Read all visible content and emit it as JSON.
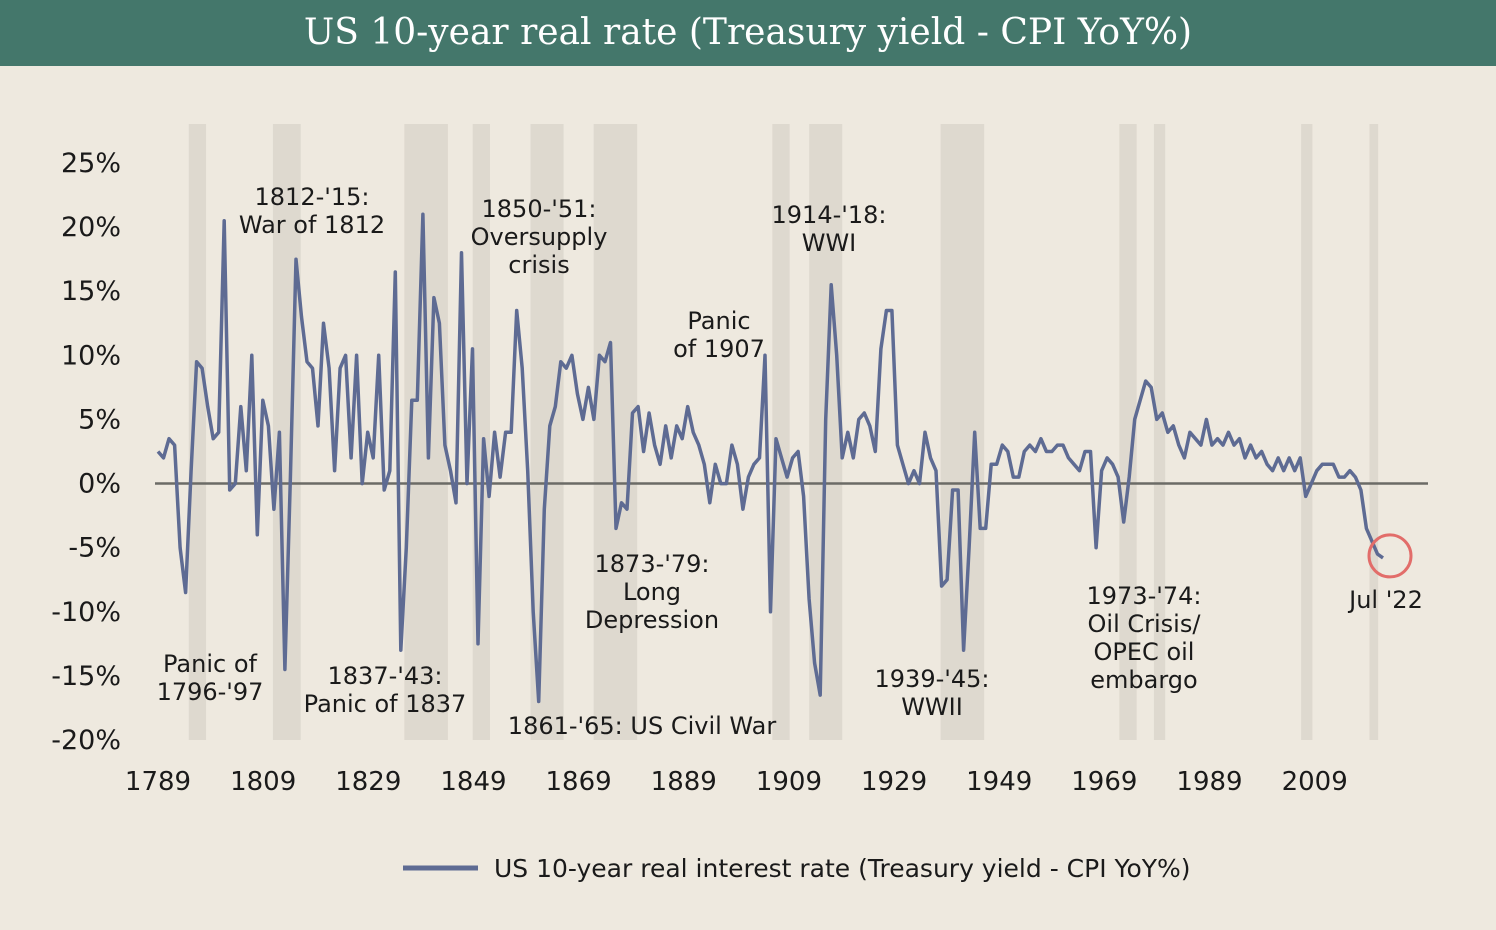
{
  "header": {
    "title": "US 10-year real rate (Treasury yield - CPI YoY%)"
  },
  "chart_data": {
    "type": "line",
    "title": "US 10-year real rate (Treasury yield - CPI YoY%)",
    "xlabel": "",
    "ylabel": "",
    "xlim": [
      1789,
      2022
    ],
    "ylim": [
      -20,
      25
    ],
    "y_tick_values": [
      25,
      20,
      15,
      10,
      5,
      0,
      -5,
      -10,
      -15,
      -20
    ],
    "y_tick_labels": [
      "25%",
      "20%",
      "15%",
      "10%",
      "5%",
      "0%",
      "-5%",
      "-10%",
      "-15%",
      "-20%"
    ],
    "x_ticks": [
      1789,
      1809,
      1829,
      1849,
      1869,
      1889,
      1909,
      1929,
      1949,
      1969,
      1989,
      2009
    ],
    "legend": {
      "position": "bottom-center",
      "label": "US 10-year real interest rate (Treasury yield - CPI YoY%)"
    },
    "colors": {
      "line": "#5e6b93",
      "zero_line": "#6b6b66",
      "highlight_circle": "#e26d6a",
      "shade": "#d8d3ca"
    },
    "shaded_periods": [
      {
        "start": 1796,
        "end": 1797,
        "label_lines": [
          "Panic of",
          "1796-'97"
        ]
      },
      {
        "start": 1812,
        "end": 1815,
        "label_lines": [
          "1812-'15:",
          "War of 1812"
        ]
      },
      {
        "start": 1837,
        "end": 1843,
        "label_lines": [
          "1837-'43:",
          "Panic of 1837"
        ]
      },
      {
        "start": 1850,
        "end": 1851,
        "label_lines": [
          "1850-'51:",
          "Oversupply",
          "crisis"
        ]
      },
      {
        "start": 1861,
        "end": 1865,
        "label_lines": [
          "1861-'65: US Civil War"
        ]
      },
      {
        "start": 1873,
        "end": 1879,
        "label_lines": [
          "1873-'79:",
          "Long",
          "Depression"
        ]
      },
      {
        "start": 1907,
        "end": 1908,
        "label_lines": [
          "Panic",
          "of 1907"
        ]
      },
      {
        "start": 1914,
        "end": 1918,
        "label_lines": [
          "1914-'18:",
          "WWI"
        ]
      },
      {
        "start": 1939,
        "end": 1945,
        "label_lines": [
          "1939-'45:",
          "WWII"
        ]
      },
      {
        "start": 1973,
        "end": 1974,
        "label_lines": [
          "1973-'74:",
          "Oil Crisis/",
          "OPEC oil",
          "embargo"
        ]
      }
    ],
    "extra_bands": [
      {
        "start": 1979,
        "end": 1980
      },
      {
        "start": 2007,
        "end": 2008
      },
      {
        "start": 2020,
        "end": 2020.5
      }
    ],
    "highlight": {
      "x": 2022,
      "y": -5.3,
      "label": "Jul '22"
    },
    "series": [
      {
        "name": "US 10-year real interest rate (Treasury yield - CPI YoY%)",
        "points": [
          [
            1790,
            2.5
          ],
          [
            1791,
            2.0
          ],
          [
            1792,
            3.5
          ],
          [
            1793,
            3.0
          ],
          [
            1794,
            -5.0
          ],
          [
            1795,
            -8.5
          ],
          [
            1796,
            1.0
          ],
          [
            1797,
            9.5
          ],
          [
            1798,
            9.0
          ],
          [
            1799,
            6.0
          ],
          [
            1800,
            3.5
          ],
          [
            1801,
            4.0
          ],
          [
            1802,
            20.5
          ],
          [
            1803,
            -0.5
          ],
          [
            1804,
            0.0
          ],
          [
            1805,
            6.0
          ],
          [
            1806,
            1.0
          ],
          [
            1807,
            10.0
          ],
          [
            1808,
            -4.0
          ],
          [
            1809,
            6.5
          ],
          [
            1810,
            4.5
          ],
          [
            1811,
            -2.0
          ],
          [
            1812,
            4.0
          ],
          [
            1813,
            -14.5
          ],
          [
            1814,
            0.5
          ],
          [
            1815,
            17.5
          ],
          [
            1816,
            13.0
          ],
          [
            1817,
            9.5
          ],
          [
            1818,
            9.0
          ],
          [
            1819,
            4.5
          ],
          [
            1820,
            12.5
          ],
          [
            1821,
            9.0
          ],
          [
            1822,
            1.0
          ],
          [
            1823,
            9.0
          ],
          [
            1824,
            10.0
          ],
          [
            1825,
            2.0
          ],
          [
            1826,
            10.0
          ],
          [
            1827,
            0.0
          ],
          [
            1828,
            4.0
          ],
          [
            1829,
            2.0
          ],
          [
            1830,
            10.0
          ],
          [
            1831,
            -0.5
          ],
          [
            1832,
            1.0
          ],
          [
            1833,
            16.5
          ],
          [
            1834,
            -13.0
          ],
          [
            1835,
            -5.0
          ],
          [
            1836,
            6.5
          ],
          [
            1837,
            6.5
          ],
          [
            1838,
            21.0
          ],
          [
            1839,
            2.0
          ],
          [
            1840,
            14.5
          ],
          [
            1841,
            12.5
          ],
          [
            1842,
            3.0
          ],
          [
            1843,
            1.0
          ],
          [
            1844,
            -1.5
          ],
          [
            1845,
            18.0
          ],
          [
            1846,
            0.0
          ],
          [
            1847,
            10.5
          ],
          [
            1848,
            -12.5
          ],
          [
            1849,
            3.5
          ],
          [
            1850,
            -1.0
          ],
          [
            1851,
            4.0
          ],
          [
            1852,
            0.5
          ],
          [
            1853,
            4.0
          ],
          [
            1854,
            4.0
          ],
          [
            1855,
            13.5
          ],
          [
            1856,
            9.0
          ],
          [
            1857,
            1.0
          ],
          [
            1858,
            -10.0
          ],
          [
            1859,
            -17.0
          ],
          [
            1860,
            -2.0
          ],
          [
            1861,
            4.5
          ],
          [
            1862,
            6.0
          ],
          [
            1863,
            9.5
          ],
          [
            1864,
            9.0
          ],
          [
            1865,
            10.0
          ],
          [
            1866,
            7.0
          ],
          [
            1867,
            5.0
          ],
          [
            1868,
            7.5
          ],
          [
            1869,
            5.0
          ],
          [
            1870,
            10.0
          ],
          [
            1871,
            9.5
          ],
          [
            1872,
            11.0
          ],
          [
            1873,
            -3.5
          ],
          [
            1874,
            -1.5
          ],
          [
            1875,
            -2.0
          ],
          [
            1876,
            5.5
          ],
          [
            1877,
            6.0
          ],
          [
            1878,
            2.5
          ],
          [
            1879,
            5.5
          ],
          [
            1880,
            3.0
          ],
          [
            1881,
            1.5
          ],
          [
            1882,
            4.5
          ],
          [
            1883,
            2.0
          ],
          [
            1884,
            4.5
          ],
          [
            1885,
            3.5
          ],
          [
            1886,
            6.0
          ],
          [
            1887,
            4.0
          ],
          [
            1888,
            3.0
          ],
          [
            1889,
            1.5
          ],
          [
            1890,
            -1.5
          ],
          [
            1891,
            1.5
          ],
          [
            1892,
            0.0
          ],
          [
            1893,
            0.0
          ],
          [
            1894,
            3.0
          ],
          [
            1895,
            1.5
          ],
          [
            1896,
            -2.0
          ],
          [
            1897,
            0.5
          ],
          [
            1898,
            1.5
          ],
          [
            1899,
            2.0
          ],
          [
            1900,
            10.0
          ],
          [
            1901,
            -10.0
          ],
          [
            1902,
            3.5
          ],
          [
            1903,
            2.0
          ],
          [
            1904,
            0.5
          ],
          [
            1905,
            2.0
          ],
          [
            1906,
            2.5
          ],
          [
            1907,
            -1.0
          ],
          [
            1908,
            -9.0
          ],
          [
            1909,
            -14.0
          ],
          [
            1910,
            -16.5
          ],
          [
            1911,
            5.0
          ],
          [
            1912,
            15.5
          ],
          [
            1913,
            10.0
          ],
          [
            1914,
            2.0
          ],
          [
            1915,
            4.0
          ],
          [
            1916,
            2.0
          ],
          [
            1917,
            5.0
          ],
          [
            1918,
            5.5
          ],
          [
            1919,
            4.5
          ],
          [
            1920,
            2.5
          ],
          [
            1921,
            10.5
          ],
          [
            1922,
            13.5
          ],
          [
            1923,
            13.5
          ],
          [
            1924,
            3.0
          ],
          [
            1925,
            1.5
          ],
          [
            1926,
            0.0
          ],
          [
            1927,
            1.0
          ],
          [
            1928,
            0.0
          ],
          [
            1929,
            4.0
          ],
          [
            1930,
            2.0
          ],
          [
            1931,
            1.0
          ],
          [
            1932,
            -8.0
          ],
          [
            1933,
            -7.5
          ],
          [
            1934,
            -0.5
          ],
          [
            1935,
            -0.5
          ],
          [
            1936,
            -13.0
          ],
          [
            1937,
            -5.0
          ],
          [
            1938,
            4.0
          ],
          [
            1939,
            -3.5
          ],
          [
            1940,
            -3.5
          ],
          [
            1941,
            1.5
          ],
          [
            1942,
            1.5
          ],
          [
            1943,
            3.0
          ],
          [
            1944,
            2.5
          ],
          [
            1945,
            0.5
          ],
          [
            1946,
            0.5
          ],
          [
            1947,
            2.5
          ],
          [
            1948,
            3.0
          ],
          [
            1949,
            2.5
          ],
          [
            1950,
            3.5
          ],
          [
            1951,
            2.5
          ],
          [
            1952,
            2.5
          ],
          [
            1953,
            3.0
          ],
          [
            1954,
            3.0
          ],
          [
            1955,
            2.0
          ],
          [
            1956,
            1.5
          ],
          [
            1957,
            1.0
          ],
          [
            1958,
            2.5
          ],
          [
            1959,
            2.5
          ],
          [
            1960,
            -5.0
          ],
          [
            1961,
            1.0
          ],
          [
            1962,
            2.0
          ],
          [
            1963,
            1.5
          ],
          [
            1964,
            0.5
          ],
          [
            1965,
            -3.0
          ],
          [
            1966,
            0.5
          ],
          [
            1967,
            5.0
          ],
          [
            1968,
            6.5
          ],
          [
            1969,
            8.0
          ],
          [
            1970,
            7.5
          ],
          [
            1971,
            5.0
          ],
          [
            1972,
            5.5
          ],
          [
            1973,
            4.0
          ],
          [
            1974,
            4.5
          ],
          [
            1975,
            3.0
          ],
          [
            1976,
            2.0
          ],
          [
            1977,
            4.0
          ],
          [
            1978,
            3.5
          ],
          [
            1979,
            3.0
          ],
          [
            1980,
            5.0
          ],
          [
            1981,
            3.0
          ],
          [
            1982,
            3.5
          ],
          [
            1983,
            3.0
          ],
          [
            1984,
            4.0
          ],
          [
            1985,
            3.0
          ],
          [
            1986,
            3.5
          ],
          [
            1987,
            2.0
          ],
          [
            1988,
            3.0
          ],
          [
            1989,
            2.0
          ],
          [
            1990,
            2.5
          ],
          [
            1991,
            1.5
          ],
          [
            1992,
            1.0
          ],
          [
            1993,
            2.0
          ],
          [
            1994,
            1.0
          ],
          [
            1995,
            2.0
          ],
          [
            1996,
            1.0
          ],
          [
            1997,
            2.0
          ],
          [
            1998,
            -1.0
          ],
          [
            1999,
            0.0
          ],
          [
            2000,
            1.0
          ],
          [
            2001,
            1.5
          ],
          [
            2002,
            1.5
          ],
          [
            2003,
            1.5
          ],
          [
            2004,
            0.5
          ],
          [
            2005,
            0.5
          ],
          [
            2006,
            1.0
          ],
          [
            2007,
            0.5
          ],
          [
            2008,
            -0.5
          ],
          [
            2009,
            -3.5
          ],
          [
            2010,
            -4.5
          ],
          [
            2011,
            -5.5
          ],
          [
            2012,
            -5.8
          ]
        ]
      }
    ]
  }
}
